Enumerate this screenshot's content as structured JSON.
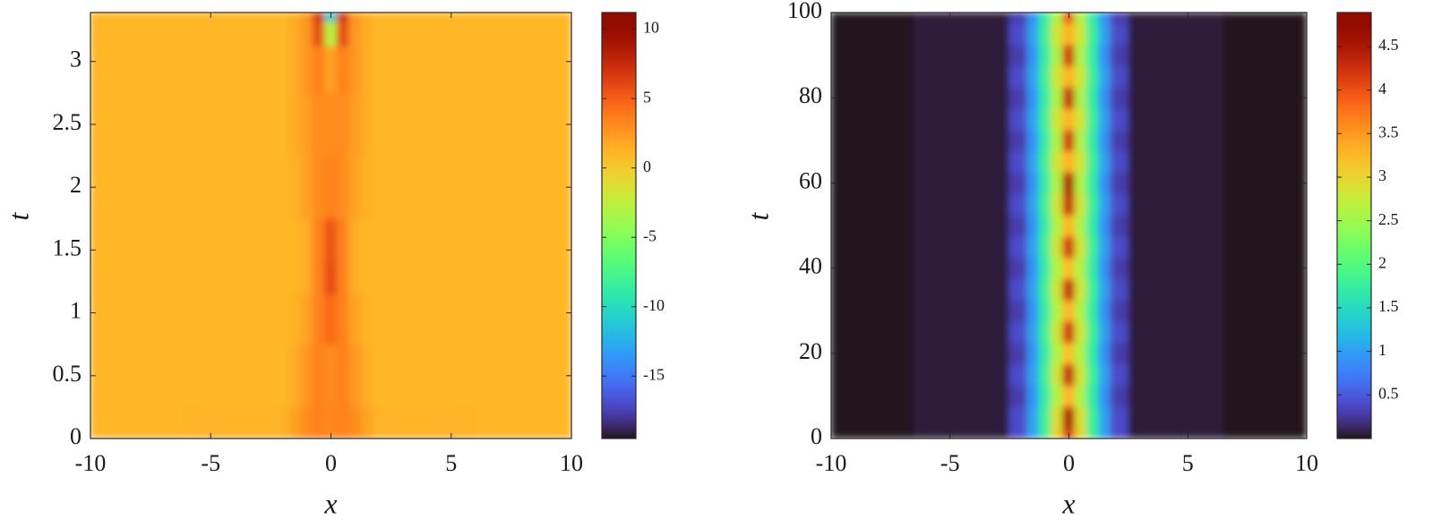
{
  "chart_data": [
    {
      "type": "heatmap",
      "colormap": "turbo",
      "xlabel": "x",
      "ylabel": "t",
      "xlim": [
        -10,
        10
      ],
      "ylim": [
        0,
        3.39
      ],
      "xticks": [
        -10,
        -5,
        0,
        5,
        10
      ],
      "yticks": [
        0,
        0.5,
        1,
        1.5,
        2,
        2.5,
        3
      ],
      "clim": [
        -19.5,
        11.2
      ],
      "cticks": [
        -15,
        -10,
        -5,
        0,
        5,
        10
      ],
      "x": [
        -10,
        -2,
        -1.5,
        -1,
        -0.5,
        0,
        0.5,
        1,
        1.5,
        2,
        10
      ],
      "y": [
        0,
        0.5,
        1,
        1.3,
        1.5,
        2,
        2.5,
        3,
        3.25,
        3.39
      ],
      "z": [
        [
          1,
          1.2,
          2,
          3,
          3.5,
          3.2,
          3.5,
          3,
          2,
          1.2,
          1
        ],
        [
          1,
          1,
          1.5,
          2.5,
          3.5,
          3,
          3.5,
          2.5,
          1.5,
          1,
          1
        ],
        [
          1,
          1,
          1.2,
          2,
          3.5,
          4.5,
          3.5,
          2,
          1.2,
          1,
          1
        ],
        [
          1,
          1,
          1,
          1.5,
          3.5,
          6,
          3.5,
          1.5,
          1,
          1,
          1
        ],
        [
          1,
          1,
          1,
          1.5,
          3.5,
          5.5,
          3.5,
          1.5,
          1,
          1,
          1
        ],
        [
          1,
          1,
          1.3,
          2,
          3,
          3.5,
          3,
          2,
          1.3,
          1,
          1
        ],
        [
          1,
          1,
          1.5,
          2.2,
          3,
          3,
          3,
          2.2,
          1.5,
          1,
          1
        ],
        [
          1,
          1,
          1.5,
          2.5,
          3.5,
          2,
          3.5,
          2.5,
          1.5,
          1,
          1
        ],
        [
          1,
          1,
          1.5,
          2.5,
          6,
          -3,
          6,
          2.5,
          1.5,
          1,
          1
        ],
        [
          1,
          1,
          1.5,
          2.5,
          7,
          -11,
          7,
          2.5,
          1.5,
          1,
          1
        ]
      ]
    },
    {
      "type": "heatmap",
      "colormap": "turbo",
      "xlabel": "x",
      "ylabel": "t",
      "xlim": [
        -10,
        10
      ],
      "ylim": [
        0,
        100
      ],
      "xticks": [
        -10,
        -5,
        0,
        5,
        10
      ],
      "yticks": [
        0,
        20,
        40,
        60,
        80,
        100
      ],
      "clim": [
        0,
        4.89
      ],
      "cticks": [
        0.5,
        1,
        1.5,
        2,
        2.5,
        3,
        3.5,
        4,
        4.5
      ],
      "x": [
        -10,
        -3,
        -2,
        -1.5,
        -1,
        -0.5,
        0,
        0.5,
        1,
        1.5,
        2,
        3,
        10
      ],
      "y": [
        0,
        5,
        10,
        15,
        20,
        25,
        30,
        35,
        40,
        45,
        50,
        55,
        60,
        65,
        70,
        75,
        80,
        85,
        90,
        95,
        100
      ],
      "z": [
        [
          0,
          0.05,
          0.4,
          1,
          1.8,
          3,
          4.2,
          3,
          1.8,
          1,
          0.4,
          0.05,
          0
        ],
        [
          0,
          0.05,
          0.4,
          1,
          1.8,
          2.9,
          4.5,
          2.9,
          1.8,
          1,
          0.4,
          0.05,
          0
        ],
        [
          0,
          0.05,
          0.3,
          0.9,
          1.7,
          2.6,
          3.3,
          2.6,
          1.7,
          0.9,
          0.3,
          0.05,
          0
        ],
        [
          0,
          0.05,
          0.4,
          1,
          1.8,
          2.8,
          4.3,
          2.8,
          1.8,
          1,
          0.4,
          0.05,
          0
        ],
        [
          0,
          0.05,
          0.3,
          0.9,
          1.7,
          2.6,
          3.2,
          2.6,
          1.7,
          0.9,
          0.3,
          0.05,
          0
        ],
        [
          0,
          0.05,
          0.4,
          1,
          1.8,
          2.8,
          4.2,
          2.8,
          1.8,
          1,
          0.4,
          0.05,
          0
        ],
        [
          0,
          0.05,
          0.3,
          0.9,
          1.7,
          2.6,
          3.3,
          2.6,
          1.7,
          0.9,
          0.3,
          0.05,
          0
        ],
        [
          0,
          0.05,
          0.4,
          1,
          1.8,
          2.8,
          4.3,
          2.8,
          1.8,
          1,
          0.4,
          0.05,
          0
        ],
        [
          0,
          0.05,
          0.3,
          0.9,
          1.7,
          2.6,
          3.2,
          2.6,
          1.7,
          0.9,
          0.3,
          0.05,
          0
        ],
        [
          0,
          0.05,
          0.4,
          1,
          1.8,
          2.8,
          4.2,
          2.8,
          1.8,
          1,
          0.4,
          0.05,
          0
        ],
        [
          0,
          0.05,
          0.3,
          0.9,
          1.7,
          2.6,
          3.3,
          2.6,
          1.7,
          0.9,
          0.3,
          0.05,
          0
        ],
        [
          0,
          0.05,
          0.4,
          1,
          1.8,
          2.8,
          4.3,
          2.8,
          1.8,
          1,
          0.4,
          0.05,
          0
        ],
        [
          0,
          0.05,
          0.3,
          0.9,
          1.7,
          2.6,
          4.5,
          2.6,
          1.7,
          0.9,
          0.3,
          0.05,
          0
        ],
        [
          0,
          0.05,
          0.4,
          1,
          1.8,
          2.8,
          3.3,
          2.8,
          1.8,
          1,
          0.4,
          0.05,
          0
        ],
        [
          0,
          0.05,
          0.3,
          0.9,
          1.7,
          2.6,
          4.2,
          2.6,
          1.7,
          0.9,
          0.3,
          0.05,
          0
        ],
        [
          0,
          0.05,
          0.4,
          1,
          1.8,
          2.8,
          3.3,
          2.8,
          1.8,
          1,
          0.4,
          0.05,
          0
        ],
        [
          0,
          0.05,
          0.3,
          0.9,
          1.7,
          2.6,
          4.3,
          2.6,
          1.7,
          0.9,
          0.3,
          0.05,
          0
        ],
        [
          0,
          0.05,
          0.4,
          1,
          1.8,
          2.8,
          3.3,
          2.8,
          1.8,
          1,
          0.4,
          0.05,
          0
        ],
        [
          0,
          0.05,
          0.3,
          0.9,
          1.7,
          2.6,
          4.2,
          2.6,
          1.7,
          0.9,
          0.3,
          0.05,
          0
        ],
        [
          0,
          0.05,
          0.4,
          1,
          1.8,
          2.8,
          3.3,
          2.8,
          1.8,
          1,
          0.4,
          0.05,
          0
        ],
        [
          0,
          0.05,
          0.3,
          0.9,
          1.7,
          2.6,
          4,
          2.6,
          1.7,
          0.9,
          0.3,
          0.05,
          0
        ]
      ]
    }
  ]
}
